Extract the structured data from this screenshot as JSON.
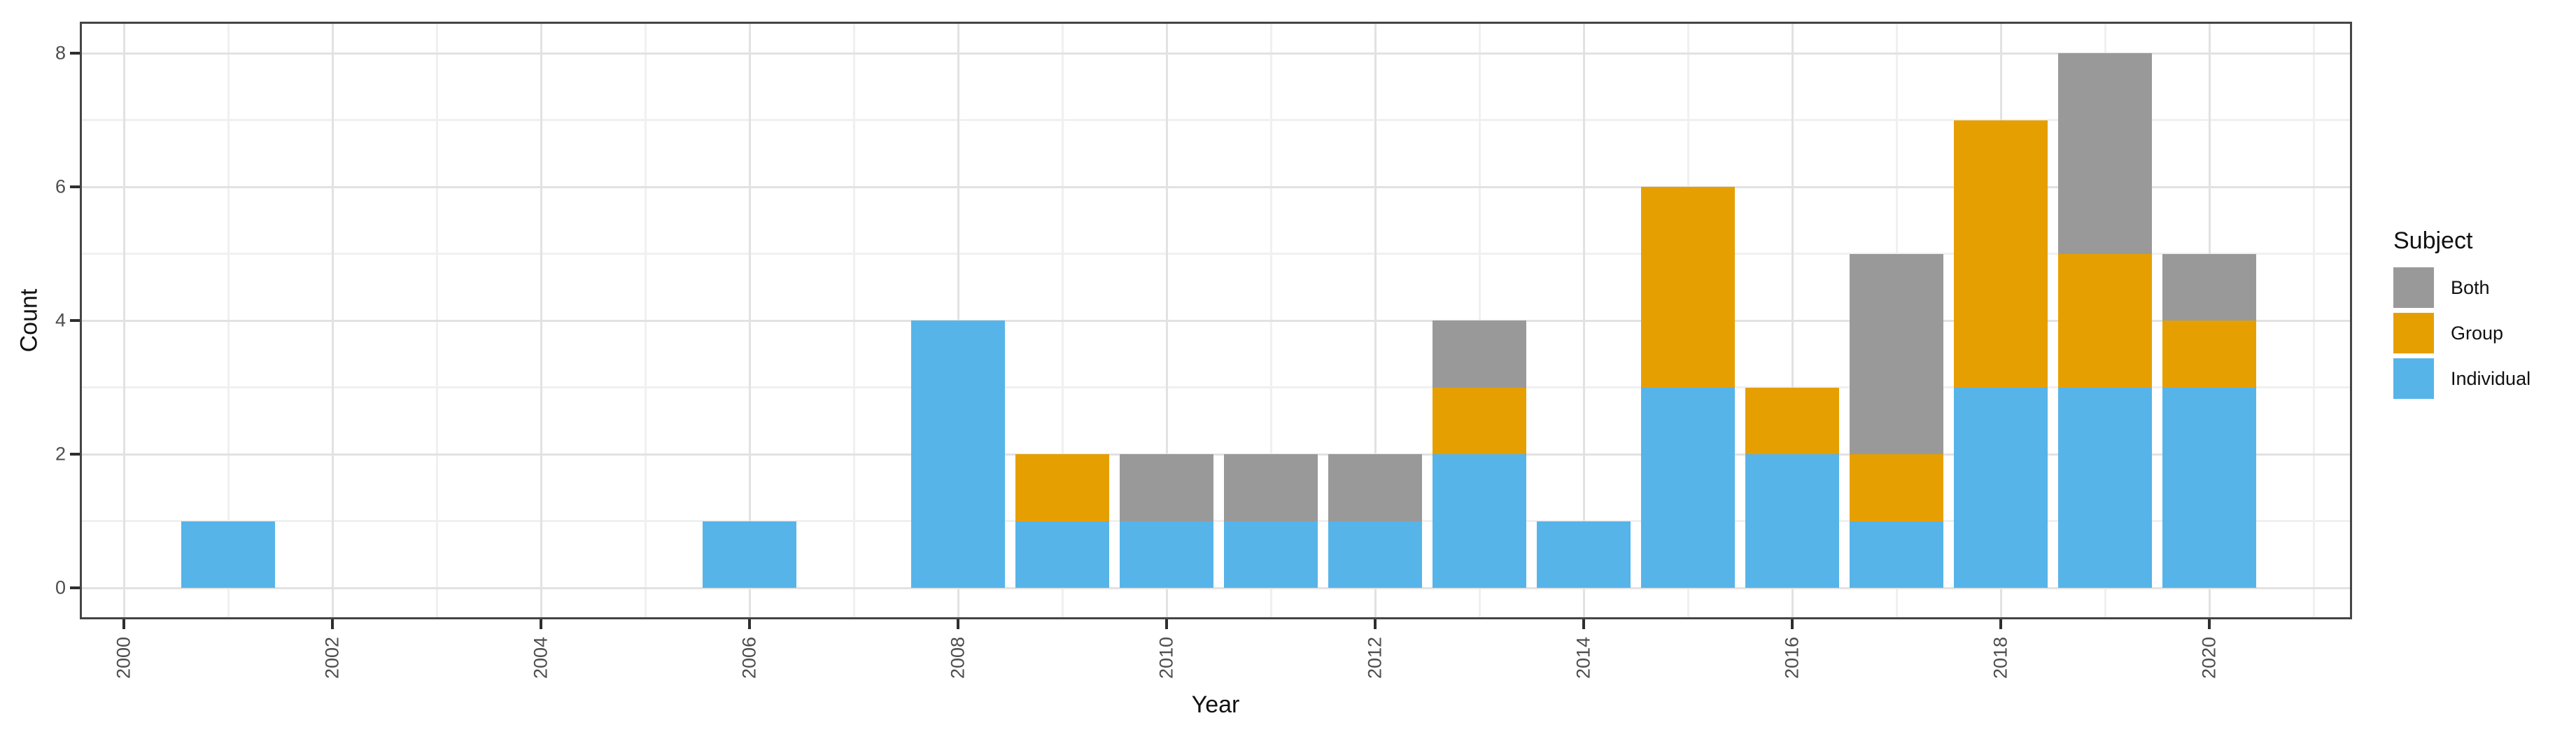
{
  "chart_data": {
    "type": "bar",
    "stacked": true,
    "title": "",
    "xlabel": "Year",
    "ylabel": "Count",
    "grid": true,
    "legend": {
      "title": "Subject",
      "position": "right",
      "entries": [
        {
          "label": "Both",
          "color": "#999999"
        },
        {
          "label": "Group",
          "color": "#E69F00"
        },
        {
          "label": "Individual",
          "color": "#56B4E9"
        }
      ]
    },
    "colors": {
      "individual": "#56B4E9",
      "group": "#E69F00",
      "both": "#999999",
      "background": "#ffffff",
      "panel_border": "#454545",
      "grid_major": "#e2e2e2",
      "grid_minor": "#f0f0f0",
      "axis_text": "#4d4d4d",
      "tick_mark": "#2e2e2e",
      "title_text": "#111111"
    },
    "stack_order": [
      "individual",
      "group",
      "both"
    ],
    "x_ticks": [
      2000,
      2002,
      2004,
      2006,
      2008,
      2010,
      2012,
      2014,
      2016,
      2018,
      2020
    ],
    "x_minor_ticks": [
      2001,
      2003,
      2005,
      2007,
      2009,
      2011,
      2013,
      2015,
      2017,
      2019,
      2021
    ],
    "y_ticks": [
      0,
      2,
      4,
      6,
      8
    ],
    "y_minor_ticks": [
      1,
      3,
      5,
      7
    ],
    "xlim": [
      1999.58,
      2021.2
    ],
    "ylim": [
      -0.47,
      8.68
    ],
    "bars": [
      {
        "year": 2000,
        "individual": 0,
        "group": 0,
        "both": 0
      },
      {
        "year": 2001,
        "individual": 1,
        "group": 0,
        "both": 0
      },
      {
        "year": 2002,
        "individual": 0,
        "group": 0,
        "both": 0
      },
      {
        "year": 2003,
        "individual": 0,
        "group": 0,
        "both": 0
      },
      {
        "year": 2004,
        "individual": 0,
        "group": 0,
        "both": 0
      },
      {
        "year": 2005,
        "individual": 0,
        "group": 0,
        "both": 0
      },
      {
        "year": 2006,
        "individual": 1,
        "group": 0,
        "both": 0
      },
      {
        "year": 2007,
        "individual": 0,
        "group": 0,
        "both": 0
      },
      {
        "year": 2008,
        "individual": 4,
        "group": 0,
        "both": 0
      },
      {
        "year": 2009,
        "individual": 1,
        "group": 1,
        "both": 0
      },
      {
        "year": 2010,
        "individual": 1,
        "group": 0,
        "both": 1
      },
      {
        "year": 2011,
        "individual": 1,
        "group": 0,
        "both": 1
      },
      {
        "year": 2012,
        "individual": 1,
        "group": 0,
        "both": 1
      },
      {
        "year": 2013,
        "individual": 2,
        "group": 1,
        "both": 1
      },
      {
        "year": 2014,
        "individual": 1,
        "group": 0,
        "both": 0
      },
      {
        "year": 2015,
        "individual": 3,
        "group": 3,
        "both": 0
      },
      {
        "year": 2016,
        "individual": 2,
        "group": 1,
        "both": 0
      },
      {
        "year": 2017,
        "individual": 1,
        "group": 1,
        "both": 3
      },
      {
        "year": 2018,
        "individual": 3,
        "group": 4,
        "both": 0
      },
      {
        "year": 2019,
        "individual": 3,
        "group": 2,
        "both": 3
      },
      {
        "year": 2020,
        "individual": 3,
        "group": 1,
        "both": 1
      }
    ]
  }
}
